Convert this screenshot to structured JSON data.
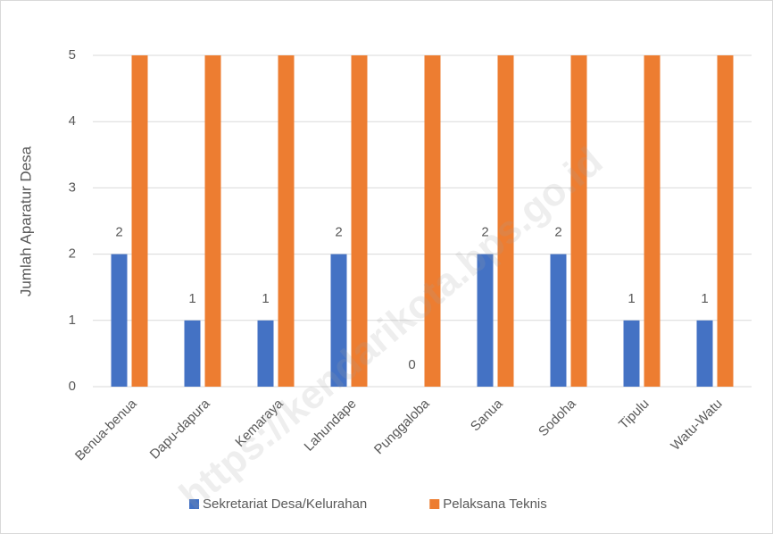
{
  "chart_data": {
    "type": "bar",
    "y_label": "Jumlah Aparatur Desa",
    "categories": [
      "Benua-benua",
      "Dapu-dapura",
      "Kemaraya",
      "Lahundape",
      "Punggaloba",
      "Sanua",
      "Sodoha",
      "Tipulu",
      "Watu-Watu"
    ],
    "series": [
      {
        "name": "Sekretariat Desa/Kelurahan",
        "color": "#4472c4",
        "values": [
          2,
          1,
          1,
          2,
          0,
          2,
          2,
          1,
          1
        ],
        "data_labels": true
      },
      {
        "name": "Pelaksana Teknis",
        "color": "#ed7d31",
        "values": [
          5,
          5,
          5,
          5,
          5,
          5,
          5,
          5,
          5
        ],
        "data_labels": false
      }
    ],
    "ylim": [
      0,
      5
    ],
    "yticks": [
      0,
      1,
      2,
      3,
      4,
      5
    ],
    "grid": true,
    "legend": "bottom",
    "watermark": "https://kendarikota.bps.go.id"
  }
}
